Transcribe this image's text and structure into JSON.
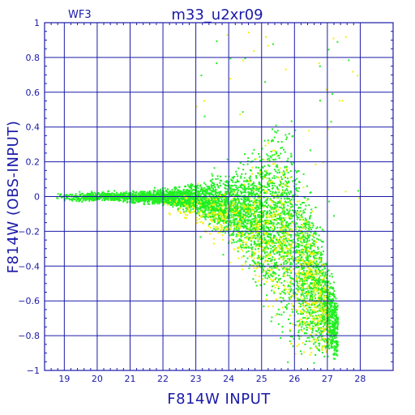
{
  "chart_data": {
    "type": "scatter",
    "title": "m33_u2xr09",
    "corner_label": "WF3",
    "xlabel": "F814W INPUT",
    "ylabel": "F814W (OBS-INPUT)",
    "xlim": [
      18.4,
      29.0
    ],
    "ylim": [
      -1.0,
      1.0
    ],
    "x_ticks": [
      19,
      20,
      21,
      22,
      23,
      24,
      25,
      26,
      27,
      28
    ],
    "y_ticks": [
      -1,
      -0.8,
      -0.6,
      -0.4,
      -0.2,
      0,
      0.2,
      0.4,
      0.6,
      0.8,
      1
    ],
    "y_tick_labels": [
      "−1",
      "−0.8",
      "−0.6",
      "−0.4",
      "−0.2",
      "0",
      "0.2",
      "0.4",
      "0.6",
      "0.8",
      "1"
    ],
    "grid": true,
    "colors": {
      "axis": "#1a1aa8",
      "grid": "#1a1aa8",
      "series_green": "#22ee22",
      "series_yellow": "#f2f20a"
    },
    "series": [
      {
        "color": "#22ee22",
        "envelope": {
          "x": [
            18.7,
            19,
            20,
            21,
            22,
            23,
            24,
            24.5,
            25,
            25.3,
            25.6,
            25.9,
            26.2,
            26.5,
            26.8,
            27.0,
            27.3
          ],
          "upper": [
            0.04,
            0.03,
            0.04,
            0.04,
            0.06,
            0.1,
            0.18,
            0.25,
            0.37,
            0.5,
            0.6,
            0.5,
            0.3,
            0.1,
            -0.1,
            -0.3,
            -0.55
          ],
          "lower": [
            -0.03,
            -0.03,
            -0.03,
            -0.04,
            -0.06,
            -0.12,
            -0.28,
            -0.42,
            -0.62,
            -0.78,
            -0.9,
            -1.0,
            -1.0,
            -1.0,
            -1.0,
            -1.0,
            -1.0
          ]
        }
      },
      {
        "color": "#f2f20a",
        "envelope": {
          "x": [
            22,
            23,
            24,
            25,
            25.5,
            26,
            26.5,
            27
          ],
          "upper": [
            0.02,
            0.05,
            0.12,
            0.3,
            0.45,
            0.3,
            0.0,
            -0.4
          ],
          "lower": [
            -0.1,
            -0.2,
            -0.4,
            -0.65,
            -0.85,
            -1.0,
            -1.0,
            -1.0
          ]
        }
      }
    ]
  }
}
